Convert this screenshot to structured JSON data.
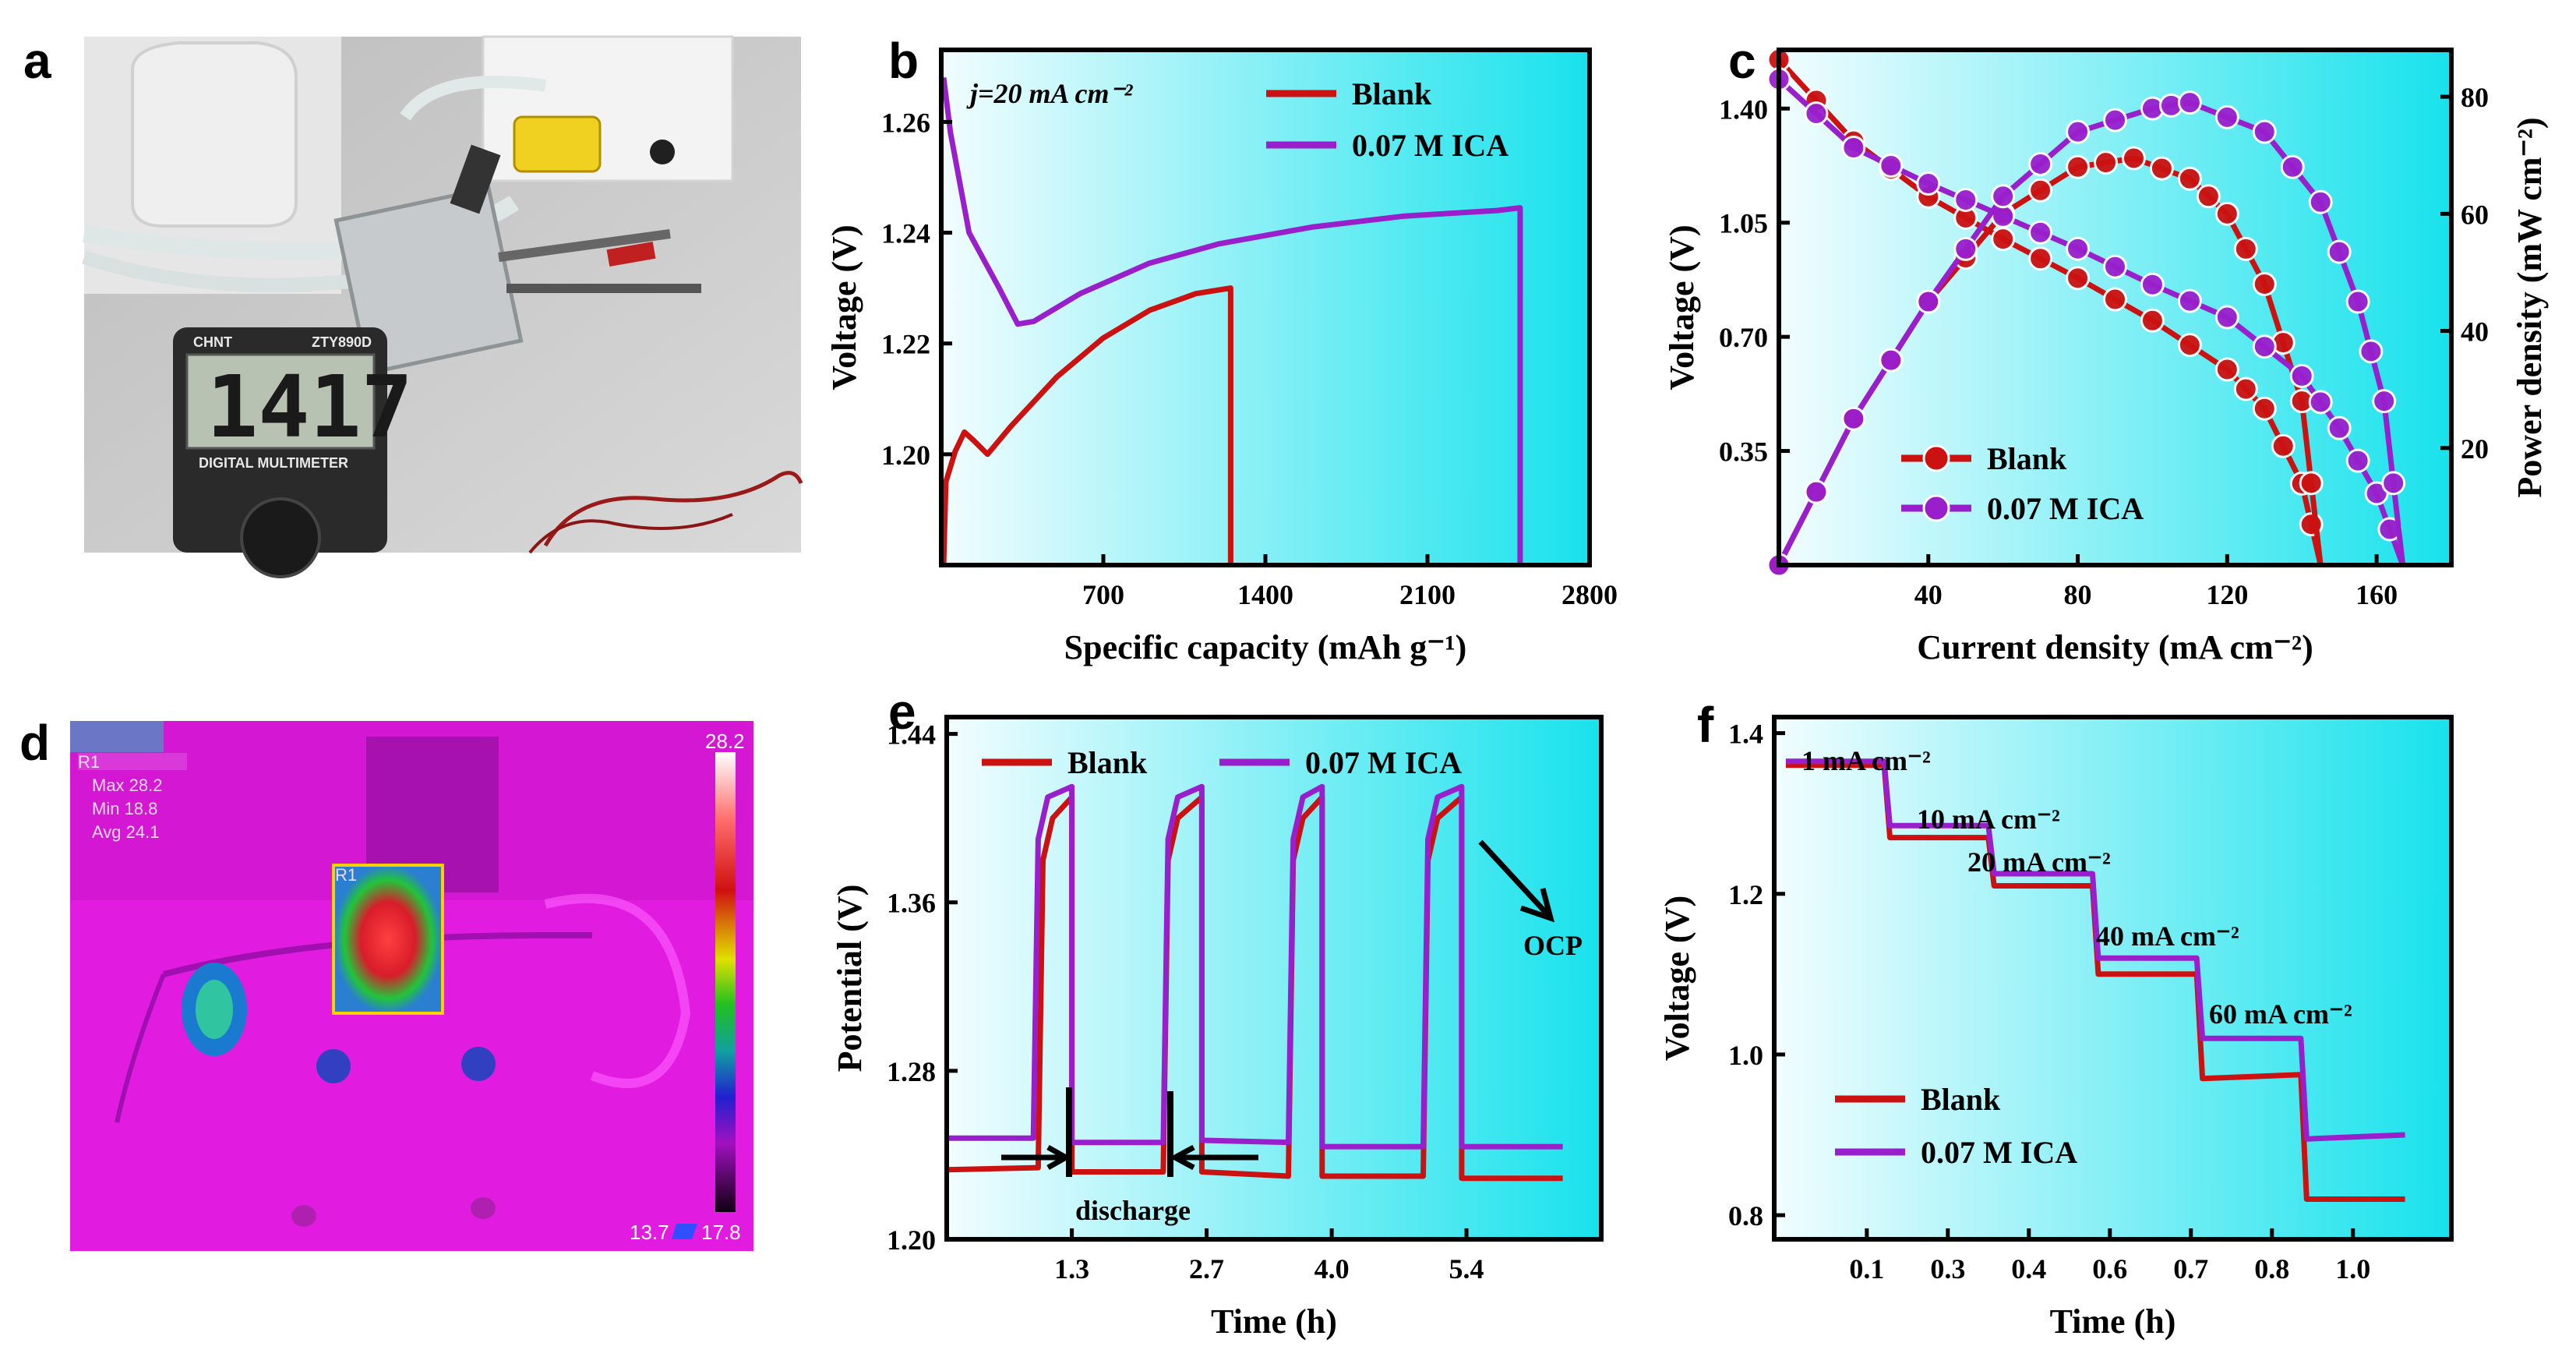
{
  "panel_labels": {
    "a": "a",
    "b": "b",
    "c": "c",
    "d": "d",
    "e": "e",
    "f": "f"
  },
  "photo_a": {
    "display_value": "1417",
    "brand": "CHNT",
    "model": "ZTY890D",
    "subtitle": "DIGITAL MULTIMETER"
  },
  "thermal_d": {
    "roi_label": "R1",
    "max_label": "Max 28.2",
    "min_label": "Min 18.8",
    "avg_label": "Avg 24.1",
    "roi_box_label": "R1",
    "scale_max": "28.2",
    "scale_min": "13.7",
    "corner_value": "17.8"
  },
  "chart_data": [
    {
      "id": "b",
      "type": "line",
      "title": "",
      "xlabel": "Specific capacity (mAh g⁻¹)",
      "ylabel": "Voltage (V)",
      "xlim": [
        0,
        2800
      ],
      "ylim": [
        1.18,
        1.273
      ],
      "x_ticks": [
        700,
        1400,
        2100,
        2800
      ],
      "x_tick_labels": [
        "700",
        "1400",
        "2100",
        "2800"
      ],
      "y_ticks": [
        1.2,
        1.22,
        1.24,
        1.26
      ],
      "y_tick_labels": [
        "1.20",
        "1.22",
        "1.24",
        "1.26"
      ],
      "annotation": "j=20 mA cm⁻²",
      "legend": [
        "Blank",
        "0.07 M ICA"
      ],
      "series": [
        {
          "name": "Blank",
          "color": "#cc1111",
          "points": [
            [
              10,
              1.18
            ],
            [
              20,
              1.195
            ],
            [
              60,
              1.2005
            ],
            [
              100,
              1.204
            ],
            [
              140,
              1.2025
            ],
            [
              200,
              1.2
            ],
            [
              300,
              1.205
            ],
            [
              500,
              1.214
            ],
            [
              700,
              1.221
            ],
            [
              900,
              1.226
            ],
            [
              1100,
              1.229
            ],
            [
              1250,
              1.23
            ],
            [
              1250,
              1.18
            ]
          ]
        },
        {
          "name": "0.07 M ICA",
          "color": "#9a1fcc",
          "points": [
            [
              10,
              1.268
            ],
            [
              40,
              1.258
            ],
            [
              120,
              1.24
            ],
            [
              250,
              1.23
            ],
            [
              330,
              1.2235
            ],
            [
              400,
              1.224
            ],
            [
              600,
              1.229
            ],
            [
              900,
              1.2345
            ],
            [
              1200,
              1.238
            ],
            [
              1600,
              1.241
            ],
            [
              2000,
              1.243
            ],
            [
              2400,
              1.244
            ],
            [
              2500,
              1.2445
            ],
            [
              2500,
              1.18
            ]
          ]
        }
      ]
    },
    {
      "id": "c",
      "type": "line",
      "xlabel": "Current density (mA cm⁻²)",
      "ylabel": "Voltage (V)",
      "y2label": "Power density (mW cm⁻²)",
      "xlim": [
        0,
        180
      ],
      "ylim": [
        0.0,
        1.58
      ],
      "y2lim": [
        0,
        88
      ],
      "x_ticks": [
        40,
        80,
        120,
        160
      ],
      "x_tick_labels": [
        "40",
        "80",
        "120",
        "160"
      ],
      "y_ticks": [
        0.35,
        0.7,
        1.05,
        1.4
      ],
      "y_tick_labels": [
        "0.35",
        "0.70",
        "1.05",
        "1.40"
      ],
      "y2_ticks": [
        20,
        40,
        60,
        80
      ],
      "y2_tick_labels": [
        "20",
        "40",
        "60",
        "80"
      ],
      "legend": [
        "Blank",
        "0.07 M ICA"
      ],
      "series": [
        {
          "name": "Blank voltage",
          "color": "#cc1111",
          "axis": "left",
          "points": [
            [
              0,
              1.55
            ],
            [
              20,
              1.3
            ],
            [
              40,
              1.13
            ],
            [
              60,
              1.0
            ],
            [
              80,
              0.88
            ],
            [
              100,
              0.75
            ],
            [
              120,
              0.6
            ],
            [
              130,
              0.48
            ],
            [
              140,
              0.25
            ],
            [
              145,
              0.0
            ]
          ]
        },
        {
          "name": "Blank power",
          "color": "#cc1111",
          "axis": "right",
          "points": [
            [
              0,
              0
            ],
            [
              20,
              25
            ],
            [
              40,
              45
            ],
            [
              60,
              60
            ],
            [
              80,
              68
            ],
            [
              95,
              69.5
            ],
            [
              110,
              66
            ],
            [
              120,
              60
            ],
            [
              130,
              48
            ],
            [
              140,
              28
            ],
            [
              145,
              0
            ]
          ]
        },
        {
          "name": "0.07 M ICA voltage",
          "color": "#9a1fcc",
          "axis": "left",
          "points": [
            [
              0,
              1.49
            ],
            [
              20,
              1.28
            ],
            [
              40,
              1.17
            ],
            [
              60,
              1.07
            ],
            [
              80,
              0.97
            ],
            [
              100,
              0.86
            ],
            [
              120,
              0.76
            ],
            [
              140,
              0.58
            ],
            [
              150,
              0.42
            ],
            [
              160,
              0.22
            ],
            [
              167,
              0.0
            ]
          ]
        },
        {
          "name": "0.07 M ICA power",
          "color": "#9a1fcc",
          "axis": "right",
          "points": [
            [
              0,
              0
            ],
            [
              20,
              25
            ],
            [
              40,
              45
            ],
            [
              60,
              63
            ],
            [
              80,
              74
            ],
            [
              100,
              78
            ],
            [
              110,
              79
            ],
            [
              130,
              74
            ],
            [
              145,
              62
            ],
            [
              155,
              45
            ],
            [
              162,
              28
            ],
            [
              167,
              0
            ]
          ]
        }
      ]
    },
    {
      "id": "e",
      "type": "line",
      "xlabel": "Time (h)",
      "ylabel": "Potential (V)",
      "xlim": [
        0.0,
        6.8
      ],
      "ylim": [
        1.2,
        1.448
      ],
      "x_ticks": [
        1.3,
        2.7,
        4.0,
        5.4
      ],
      "x_tick_labels": [
        "1.3",
        "2.7",
        "4.0",
        "5.4"
      ],
      "y_ticks": [
        1.2,
        1.28,
        1.36,
        1.44
      ],
      "y_tick_labels": [
        "1.20",
        "1.28",
        "1.36",
        "1.44"
      ],
      "legend": [
        "Blank",
        "0.07 M ICA"
      ],
      "annotations": [
        "discharge",
        "OCP"
      ],
      "series": [
        {
          "name": "Blank",
          "color": "#cc1111",
          "points": [
            [
              0,
              1.233
            ],
            [
              0.95,
              1.234
            ],
            [
              0.95,
              1.234
            ],
            [
              1.0,
              1.38
            ],
            [
              1.1,
              1.4
            ],
            [
              1.3,
              1.41
            ],
            [
              1.3,
              1.232
            ],
            [
              2.25,
              1.232
            ],
            [
              2.3,
              1.38
            ],
            [
              2.4,
              1.4
            ],
            [
              2.65,
              1.41
            ],
            [
              2.65,
              1.232
            ],
            [
              3.55,
              1.23
            ],
            [
              3.6,
              1.38
            ],
            [
              3.7,
              1.4
            ],
            [
              3.9,
              1.41
            ],
            [
              3.9,
              1.23
            ],
            [
              4.95,
              1.23
            ],
            [
              5.0,
              1.38
            ],
            [
              5.1,
              1.4
            ],
            [
              5.35,
              1.41
            ],
            [
              5.35,
              1.229
            ],
            [
              6.4,
              1.229
            ]
          ]
        },
        {
          "name": "0.07 M ICA",
          "color": "#9a1fcc",
          "points": [
            [
              0,
              1.248
            ],
            [
              0.9,
              1.248
            ],
            [
              0.95,
              1.39
            ],
            [
              1.05,
              1.41
            ],
            [
              1.3,
              1.415
            ],
            [
              1.3,
              1.246
            ],
            [
              2.25,
              1.246
            ],
            [
              2.3,
              1.39
            ],
            [
              2.4,
              1.41
            ],
            [
              2.65,
              1.415
            ],
            [
              2.65,
              1.247
            ],
            [
              3.55,
              1.246
            ],
            [
              3.6,
              1.39
            ],
            [
              3.7,
              1.41
            ],
            [
              3.9,
              1.415
            ],
            [
              3.9,
              1.244
            ],
            [
              4.95,
              1.244
            ],
            [
              5.0,
              1.39
            ],
            [
              5.1,
              1.41
            ],
            [
              5.35,
              1.415
            ],
            [
              5.35,
              1.244
            ],
            [
              6.4,
              1.244
            ]
          ]
        }
      ]
    },
    {
      "id": "f",
      "type": "line",
      "xlabel": "Time (h)",
      "ylabel": "Voltage (V)",
      "xlim": [
        -0.02,
        1.15
      ],
      "ylim": [
        0.77,
        1.42
      ],
      "x_ticks": [
        0.14,
        0.28,
        0.42,
        0.56,
        0.7,
        0.84,
        0.98
      ],
      "x_tick_labels": [
        "0.1",
        "0.3",
        "0.4",
        "0.6",
        "0.7",
        "0.8",
        "1.0"
      ],
      "y_ticks": [
        0.8,
        1.0,
        1.2,
        1.4
      ],
      "y_tick_labels": [
        "0.8",
        "1.0",
        "1.2",
        "1.4"
      ],
      "legend": [
        "Blank",
        "0.07 M ICA"
      ],
      "annotations": [
        "1 mA cm⁻²",
        "10 mA cm⁻²",
        "20 mA cm⁻²",
        "40 mA cm⁻²",
        "60 mA cm⁻²"
      ],
      "series": [
        {
          "name": "Blank",
          "color": "#cc1111",
          "points": [
            [
              0,
              1.36
            ],
            [
              0.17,
              1.36
            ],
            [
              0.18,
              1.27
            ],
            [
              0.35,
              1.27
            ],
            [
              0.36,
              1.21
            ],
            [
              0.53,
              1.21
            ],
            [
              0.54,
              1.1
            ],
            [
              0.71,
              1.1
            ],
            [
              0.72,
              0.97
            ],
            [
              0.89,
              0.975
            ],
            [
              0.9,
              0.82
            ],
            [
              1.07,
              0.82
            ]
          ]
        },
        {
          "name": "0.07 M ICA",
          "color": "#9a1fcc",
          "points": [
            [
              0,
              1.365
            ],
            [
              0.17,
              1.365
            ],
            [
              0.18,
              1.285
            ],
            [
              0.35,
              1.285
            ],
            [
              0.36,
              1.225
            ],
            [
              0.53,
              1.225
            ],
            [
              0.54,
              1.12
            ],
            [
              0.71,
              1.12
            ],
            [
              0.72,
              1.02
            ],
            [
              0.89,
              1.02
            ],
            [
              0.9,
              0.895
            ],
            [
              1.07,
              0.9
            ]
          ]
        }
      ]
    }
  ]
}
